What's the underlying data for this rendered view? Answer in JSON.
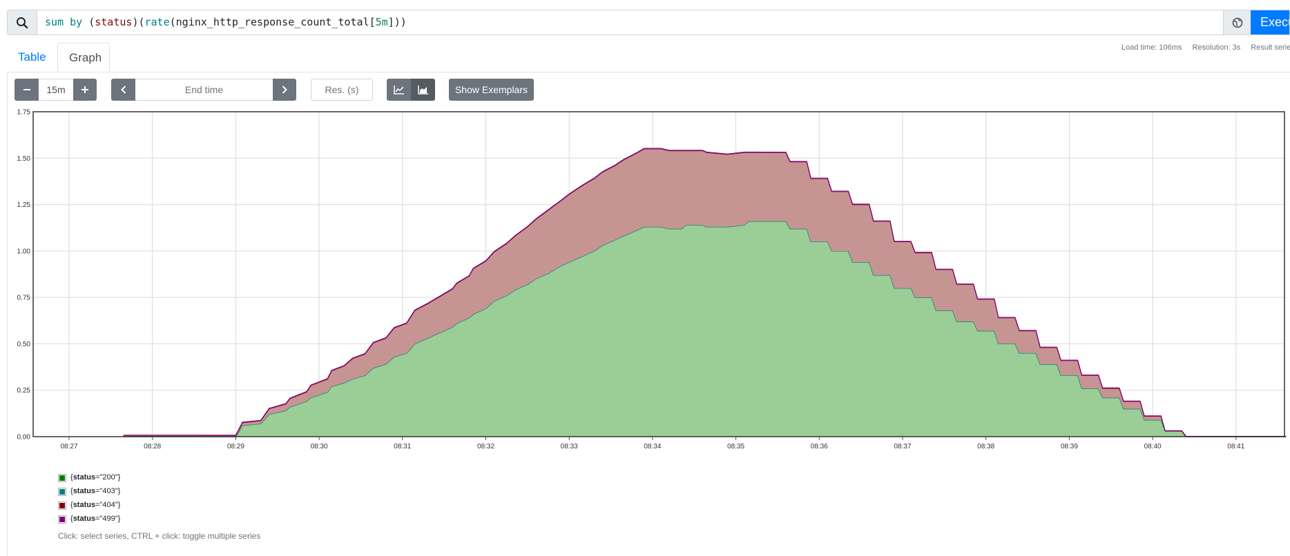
{
  "query": {
    "tokens": [
      {
        "text": "sum",
        "cls": "tok-fn"
      },
      {
        "text": " ",
        "cls": ""
      },
      {
        "text": "by",
        "cls": "tok-kw"
      },
      {
        "text": " (",
        "cls": ""
      },
      {
        "text": "status",
        "cls": "tok-lbl"
      },
      {
        "text": ")(",
        "cls": ""
      },
      {
        "text": "rate",
        "cls": "tok-fn"
      },
      {
        "text": "(nginx_http_response_count_total[",
        "cls": ""
      },
      {
        "text": "5m",
        "cls": "tok-num"
      },
      {
        "text": "]))",
        "cls": ""
      }
    ],
    "execute_label": "Execute"
  },
  "stats": {
    "load_time": "Load time: 106ms",
    "resolution": "Resolution: 3s",
    "result_series": "Result series"
  },
  "tabs": [
    {
      "label": "Table",
      "active": false
    },
    {
      "label": "Graph",
      "active": true
    }
  ],
  "controls": {
    "range": "15m",
    "end_time_placeholder": "End time",
    "resolution_placeholder": "Res. (s)",
    "exemplars_label": "Show Exemplars"
  },
  "chart_data": {
    "type": "area",
    "stacked": true,
    "x_ticks": [
      "08:27",
      "08:28",
      "08:29",
      "08:30",
      "08:31",
      "08:32",
      "08:33",
      "08:34",
      "08:35",
      "08:36",
      "08:37",
      "08:38",
      "08:39",
      "08:40",
      "08:41"
    ],
    "y_ticks": [
      "0.00",
      "0.25",
      "0.50",
      "0.75",
      "1.00",
      "1.25",
      "1.50",
      "1.75"
    ],
    "ylim": [
      0,
      1.75
    ],
    "grid": true,
    "series": [
      {
        "name": "{status=\"200\"}",
        "color": "#008000",
        "fill": "#9bcd97",
        "points": [
          [
            0.65,
            0
          ],
          [
            1.0,
            0
          ],
          [
            2.0,
            0
          ],
          [
            2.08,
            0.06
          ],
          [
            2.3,
            0.07
          ],
          [
            2.4,
            0.12
          ],
          [
            2.6,
            0.14
          ],
          [
            2.65,
            0.16
          ],
          [
            2.85,
            0.19
          ],
          [
            2.9,
            0.21
          ],
          [
            3.1,
            0.24
          ],
          [
            3.15,
            0.27
          ],
          [
            3.3,
            0.29
          ],
          [
            3.4,
            0.31
          ],
          [
            3.55,
            0.33
          ],
          [
            3.65,
            0.37
          ],
          [
            3.8,
            0.39
          ],
          [
            3.9,
            0.43
          ],
          [
            4.05,
            0.45
          ],
          [
            4.15,
            0.5
          ],
          [
            4.3,
            0.53
          ],
          [
            4.45,
            0.56
          ],
          [
            4.6,
            0.59
          ],
          [
            4.65,
            0.61
          ],
          [
            4.8,
            0.64
          ],
          [
            4.85,
            0.66
          ],
          [
            5.0,
            0.69
          ],
          [
            5.1,
            0.73
          ],
          [
            5.25,
            0.76
          ],
          [
            5.35,
            0.79
          ],
          [
            5.5,
            0.82
          ],
          [
            5.6,
            0.85
          ],
          [
            5.75,
            0.88
          ],
          [
            5.9,
            0.92
          ],
          [
            6.0,
            0.94
          ],
          [
            6.15,
            0.97
          ],
          [
            6.3,
            1.0
          ],
          [
            6.4,
            1.03
          ],
          [
            6.55,
            1.06
          ],
          [
            6.65,
            1.08
          ],
          [
            6.8,
            1.11
          ],
          [
            6.9,
            1.13
          ],
          [
            7.1,
            1.13
          ],
          [
            7.2,
            1.12
          ],
          [
            7.35,
            1.12
          ],
          [
            7.4,
            1.14
          ],
          [
            7.6,
            1.14
          ],
          [
            7.65,
            1.13
          ],
          [
            7.9,
            1.13
          ],
          [
            8.1,
            1.14
          ],
          [
            8.15,
            1.16
          ],
          [
            8.6,
            1.16
          ],
          [
            8.65,
            1.12
          ],
          [
            8.85,
            1.12
          ],
          [
            8.9,
            1.05
          ],
          [
            9.1,
            1.05
          ],
          [
            9.15,
            1.0
          ],
          [
            9.35,
            1.0
          ],
          [
            9.4,
            0.94
          ],
          [
            9.6,
            0.94
          ],
          [
            9.65,
            0.87
          ],
          [
            9.85,
            0.87
          ],
          [
            9.9,
            0.8
          ],
          [
            10.1,
            0.8
          ],
          [
            10.15,
            0.75
          ],
          [
            10.35,
            0.75
          ],
          [
            10.4,
            0.68
          ],
          [
            10.6,
            0.68
          ],
          [
            10.65,
            0.62
          ],
          [
            10.85,
            0.62
          ],
          [
            10.9,
            0.57
          ],
          [
            11.1,
            0.57
          ],
          [
            11.15,
            0.5
          ],
          [
            11.35,
            0.5
          ],
          [
            11.4,
            0.45
          ],
          [
            11.6,
            0.45
          ],
          [
            11.65,
            0.39
          ],
          [
            11.85,
            0.39
          ],
          [
            11.9,
            0.33
          ],
          [
            12.1,
            0.33
          ],
          [
            12.15,
            0.26
          ],
          [
            12.35,
            0.26
          ],
          [
            12.4,
            0.21
          ],
          [
            12.6,
            0.21
          ],
          [
            12.65,
            0.15
          ],
          [
            12.85,
            0.15
          ],
          [
            12.9,
            0.09
          ],
          [
            13.1,
            0.09
          ],
          [
            13.15,
            0.03
          ],
          [
            13.35,
            0.03
          ],
          [
            13.4,
            0
          ],
          [
            14.6,
            0
          ]
        ]
      },
      {
        "name": "{status=\"403\"}",
        "color": "#008080",
        "fill": "#7fbfbf",
        "points": [
          [
            0.65,
            0
          ],
          [
            14.6,
            0
          ]
        ]
      },
      {
        "name": "{status=\"404\"}",
        "color": "#800000",
        "fill": "#c79494",
        "points": [
          [
            0.65,
            0.005
          ],
          [
            1.0,
            0.005
          ],
          [
            2.0,
            0.005
          ],
          [
            2.08,
            0.015
          ],
          [
            2.3,
            0.015
          ],
          [
            2.4,
            0.03
          ],
          [
            2.6,
            0.035
          ],
          [
            2.65,
            0.045
          ],
          [
            2.85,
            0.05
          ],
          [
            2.9,
            0.065
          ],
          [
            3.1,
            0.07
          ],
          [
            3.15,
            0.085
          ],
          [
            3.3,
            0.09
          ],
          [
            3.4,
            0.11
          ],
          [
            3.55,
            0.115
          ],
          [
            3.65,
            0.135
          ],
          [
            3.8,
            0.14
          ],
          [
            3.9,
            0.155
          ],
          [
            4.05,
            0.16
          ],
          [
            4.15,
            0.18
          ],
          [
            4.3,
            0.185
          ],
          [
            4.45,
            0.195
          ],
          [
            4.6,
            0.205
          ],
          [
            4.65,
            0.215
          ],
          [
            4.8,
            0.225
          ],
          [
            4.85,
            0.245
          ],
          [
            5.0,
            0.255
          ],
          [
            5.1,
            0.265
          ],
          [
            5.25,
            0.28
          ],
          [
            5.35,
            0.29
          ],
          [
            5.5,
            0.31
          ],
          [
            5.6,
            0.32
          ],
          [
            5.75,
            0.34
          ],
          [
            5.9,
            0.35
          ],
          [
            6.0,
            0.365
          ],
          [
            6.15,
            0.38
          ],
          [
            6.3,
            0.39
          ],
          [
            6.4,
            0.395
          ],
          [
            6.55,
            0.4
          ],
          [
            6.65,
            0.41
          ],
          [
            6.8,
            0.415
          ],
          [
            6.9,
            0.42
          ],
          [
            7.1,
            0.42
          ],
          [
            7.2,
            0.42
          ],
          [
            7.35,
            0.42
          ],
          [
            7.4,
            0.4
          ],
          [
            7.6,
            0.4
          ],
          [
            7.65,
            0.4
          ],
          [
            7.9,
            0.39
          ],
          [
            8.1,
            0.39
          ],
          [
            8.15,
            0.37
          ],
          [
            8.6,
            0.37
          ],
          [
            8.65,
            0.36
          ],
          [
            8.85,
            0.36
          ],
          [
            8.9,
            0.34
          ],
          [
            9.1,
            0.34
          ],
          [
            9.15,
            0.32
          ],
          [
            9.35,
            0.32
          ],
          [
            9.4,
            0.31
          ],
          [
            9.6,
            0.31
          ],
          [
            9.65,
            0.29
          ],
          [
            9.85,
            0.29
          ],
          [
            9.9,
            0.25
          ],
          [
            10.1,
            0.25
          ],
          [
            10.15,
            0.24
          ],
          [
            10.35,
            0.24
          ],
          [
            10.4,
            0.22
          ],
          [
            10.6,
            0.22
          ],
          [
            10.65,
            0.2
          ],
          [
            10.85,
            0.2
          ],
          [
            10.9,
            0.17
          ],
          [
            11.1,
            0.17
          ],
          [
            11.15,
            0.14
          ],
          [
            11.35,
            0.14
          ],
          [
            11.4,
            0.12
          ],
          [
            11.6,
            0.12
          ],
          [
            11.65,
            0.09
          ],
          [
            11.85,
            0.09
          ],
          [
            11.9,
            0.08
          ],
          [
            12.1,
            0.08
          ],
          [
            12.15,
            0.07
          ],
          [
            12.35,
            0.07
          ],
          [
            12.4,
            0.05
          ],
          [
            12.6,
            0.05
          ],
          [
            12.65,
            0.04
          ],
          [
            12.85,
            0.04
          ],
          [
            12.9,
            0.02
          ],
          [
            13.1,
            0.02
          ],
          [
            13.15,
            0.0
          ],
          [
            13.35,
            0.0
          ],
          [
            13.4,
            0
          ],
          [
            14.6,
            0
          ]
        ]
      },
      {
        "name": "{status=\"499\"}",
        "color": "#800080",
        "fill": "#bf7fbf",
        "points": [
          [
            0.65,
            0.003
          ],
          [
            0.9,
            0.003
          ],
          [
            14.6,
            0.002
          ]
        ]
      }
    ]
  },
  "legend_hint": "Click: select series, CTRL + click: toggle multiple series"
}
